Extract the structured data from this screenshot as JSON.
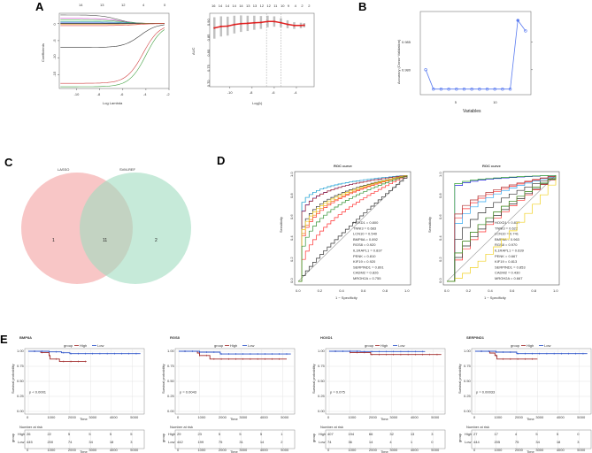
{
  "panel_labels": [
    "A",
    "B",
    "C",
    "D",
    "E"
  ],
  "chart_data": [
    {
      "panel": "A",
      "type": "line",
      "subtype": "lasso-coefficient-path",
      "xlabel": "Log Lambda",
      "ylabel": "Coefficients",
      "xlim": [
        -11.5,
        -2
      ],
      "ylim": [
        -19,
        3
      ],
      "xticks": [
        -10,
        -8,
        -6,
        -4,
        -2
      ],
      "yticks": [
        0,
        -5,
        -10,
        -15
      ],
      "top_ticks": [
        "14",
        "13",
        "12",
        "4",
        "0"
      ],
      "paths_start_coef": [
        2.5,
        1.5,
        1,
        0.5,
        0.2,
        0,
        -0.2,
        -0.6,
        -7,
        -17.5,
        -18.5
      ],
      "path_colors": [
        "#555555",
        "#d040d0",
        "#40c040",
        "#30a0a0",
        "#3060e0",
        "#000000",
        "#e0a030",
        "#e04040",
        "#333333",
        "#d04040",
        "#40a040"
      ]
    },
    {
      "panel": "A",
      "type": "line",
      "subtype": "cv-auc",
      "xlabel": "Log(λ)",
      "ylabel": "AUC",
      "xlim": [
        -11.5,
        -3.2
      ],
      "ylim": [
        0.695,
        0.935
      ],
      "xticks": [
        -10,
        -8,
        -6,
        -4
      ],
      "yticks": [
        0.7,
        0.75,
        0.8,
        0.85,
        0.9
      ],
      "top_ticks": [
        "16",
        "14",
        "14",
        "14",
        "14",
        "13",
        "13",
        "12",
        "12",
        "11",
        "10",
        "9",
        "4",
        "2",
        "2"
      ],
      "x": [
        -11.4,
        -10.8,
        -10.2,
        -9.6,
        -9,
        -8.4,
        -7.8,
        -7.2,
        -6.6,
        -6,
        -5.4,
        -4.8,
        -4.2,
        -3.6,
        -3.3
      ],
      "y": [
        0.887,
        0.892,
        0.893,
        0.898,
        0.901,
        0.902,
        0.904,
        0.905,
        0.908,
        0.908,
        0.904,
        0.899,
        0.895,
        0.895,
        0.896
      ],
      "lambda_min": -6.7,
      "lambda_1se": -5.4
    },
    {
      "panel": "B",
      "type": "line",
      "xlabel": "Variables",
      "ylabel": "Accuracy (Cross−Validation)",
      "xticks": [
        5,
        10
      ],
      "yticks": [
        0.98,
        0.985
      ],
      "ylim": [
        0.9755,
        0.9905
      ],
      "x": [
        1,
        2,
        3,
        4,
        5,
        6,
        7,
        8,
        9,
        10,
        11,
        12,
        13,
        14
      ],
      "y": [
        0.98,
        0.9765,
        0.9765,
        0.9765,
        0.9765,
        0.9765,
        0.9765,
        0.9765,
        0.9765,
        0.9765,
        0.9765,
        0.9765,
        0.9889,
        0.987
      ],
      "color": "#5b7cf0"
    },
    {
      "panel": "C",
      "type": "venn",
      "sets": [
        {
          "name": "LASSO",
          "only": "1",
          "color": "#f4a0a0"
        },
        {
          "name": "SVM-REF",
          "only": "2",
          "color": "#a0dcc0"
        }
      ],
      "intersection": "11"
    },
    {
      "panel": "D",
      "type": "line",
      "subtype": "roc",
      "title": "ROC curve",
      "xlabel": "1 − Specificity",
      "ylabel": "Sensitivity",
      "ticks": [
        "0.0",
        "0.2",
        "0.4",
        "0.6",
        "0.8",
        "1.0"
      ],
      "series": [
        {
          "name": "HOXD1",
          "auc": "0.800",
          "color": "#ff3030"
        },
        {
          "name": "TNNI3",
          "auc": "0.683",
          "color": "#ff3030"
        },
        {
          "name": "LCN10",
          "auc": "0.540",
          "color": "#333333"
        },
        {
          "name": "BMP8A",
          "auc": "0.892",
          "color": "#2020e0"
        },
        {
          "name": "RGS8",
          "auc": "0.920",
          "color": "#30a030"
        },
        {
          "name": "IL1RAPL1",
          "auc": "0.837",
          "color": "#333333"
        },
        {
          "name": "PENK",
          "auc": "0.810",
          "color": "#f08020"
        },
        {
          "name": "KIF19",
          "auc": "0.920",
          "color": "#30a8f0"
        },
        {
          "name": "SERPIND1",
          "auc": "0.891",
          "color": "#b03030"
        },
        {
          "name": "CADM2",
          "auc": "0.826",
          "color": "#f0d020"
        },
        {
          "name": "MROH2A",
          "auc": "0.755",
          "color": "#309030"
        }
      ]
    },
    {
      "panel": "D",
      "type": "line",
      "subtype": "roc",
      "title": "ROC curve",
      "xlabel": "1 − Specificity",
      "ylabel": "Sensitivity",
      "ticks": [
        "0.0",
        "0.2",
        "0.4",
        "0.6",
        "0.8",
        "1.0"
      ],
      "series": [
        {
          "name": "HOXD1",
          "auc": "0.837",
          "color": "#ff3030"
        },
        {
          "name": "TNNI3",
          "auc": "0.622",
          "color": "#ff3030"
        },
        {
          "name": "LCN10",
          "auc": "0.741",
          "color": "#333333"
        },
        {
          "name": "BMP8A",
          "auc": "0.963",
          "color": "#2020e0"
        },
        {
          "name": "RGS8",
          "auc": "0.970",
          "color": "#30a030"
        },
        {
          "name": "IL1RAPL1",
          "auc": "0.639",
          "color": "#333333"
        },
        {
          "name": "PENK",
          "auc": "0.667",
          "color": "#f08020"
        },
        {
          "name": "KIF19",
          "auc": "0.813",
          "color": "#30a8f0"
        },
        {
          "name": "SERPIND1",
          "auc": "0.853",
          "color": "#b03030"
        },
        {
          "name": "CADM2",
          "auc": "0.430",
          "color": "#f0d020"
        },
        {
          "name": "MROH2A",
          "auc": "0.667",
          "color": "#309030"
        }
      ]
    },
    {
      "panel": "E",
      "type": "line",
      "subtype": "kaplan-meier",
      "legend_title": "group",
      "groups": [
        {
          "name": "High",
          "color": "#a02828"
        },
        {
          "name": "Low",
          "color": "#2850c8"
        }
      ],
      "xlabel": "Time",
      "ylabel": "Survival probability",
      "xticks": [
        "0",
        "1000",
        "2000",
        "3000",
        "4000",
        "5000"
      ],
      "yticks": [
        "1.00",
        "0.75",
        "0.50",
        "0.25",
        "0.00"
      ],
      "risk_title": "Number at risk",
      "strata_label": "group",
      "plots": [
        {
          "title": "BMP8A",
          "p": "p < 0.0001",
          "high": [
            [
              0,
              1
            ],
            [
              600,
              0.98
            ],
            [
              1000,
              0.93
            ],
            [
              1050,
              0.87
            ],
            [
              1500,
              0.83
            ],
            [
              2800,
              0.83
            ]
          ],
          "low": [
            [
              0,
              1
            ],
            [
              1000,
              0.99
            ],
            [
              1600,
              0.975
            ],
            [
              2000,
              0.96
            ],
            [
              5400,
              0.96
            ]
          ],
          "risk_high": [
            "26",
            "22",
            "5",
            "5",
            "5",
            "5"
          ],
          "risk_low": [
            "445",
            "200",
            "74",
            "34",
            "18",
            "3"
          ]
        },
        {
          "title": "RGS8",
          "p": "p = 0.0043",
          "high": [
            [
              0,
              1
            ],
            [
              900,
              0.97
            ],
            [
              1000,
              0.93
            ],
            [
              1500,
              0.87
            ],
            [
              5200,
              0.87
            ]
          ],
          "low": [
            [
              0,
              1
            ],
            [
              1000,
              0.985
            ],
            [
              2000,
              0.955
            ],
            [
              5400,
              0.955
            ]
          ],
          "risk_high": [
            "29",
            "23",
            "5",
            "5",
            "5",
            "1"
          ],
          "risk_low": [
            "442",
            "199",
            "75",
            "31",
            "14",
            "2"
          ]
        },
        {
          "title": "HOXD1",
          "p": "p = 0.075",
          "high": [
            [
              0,
              1
            ],
            [
              1000,
              0.98
            ],
            [
              2000,
              0.945
            ],
            [
              5400,
              0.945
            ]
          ],
          "low": [
            [
              0,
              1
            ],
            [
              1500,
              0.995
            ],
            [
              4600,
              0.99
            ]
          ],
          "risk_high": [
            "407",
            "194",
            "66",
            "32",
            "13",
            "3"
          ],
          "risk_low": [
            "74",
            "36",
            "14",
            "4",
            "1",
            "0"
          ]
        },
        {
          "title": "SERPIND1",
          "p": "p = 0.00033",
          "high": [
            [
              0,
              1
            ],
            [
              700,
              0.97
            ],
            [
              950,
              0.93
            ],
            [
              1050,
              0.87
            ],
            [
              3000,
              0.87
            ]
          ],
          "low": [
            [
              0,
              1
            ],
            [
              1000,
              0.985
            ],
            [
              2000,
              0.96
            ],
            [
              5400,
              0.96
            ]
          ],
          "risk_high": [
            "27",
            "17",
            "4",
            "5",
            "5",
            "0"
          ],
          "risk_low": [
            "444",
            "205",
            "75",
            "34",
            "18",
            "3"
          ]
        }
      ]
    }
  ]
}
